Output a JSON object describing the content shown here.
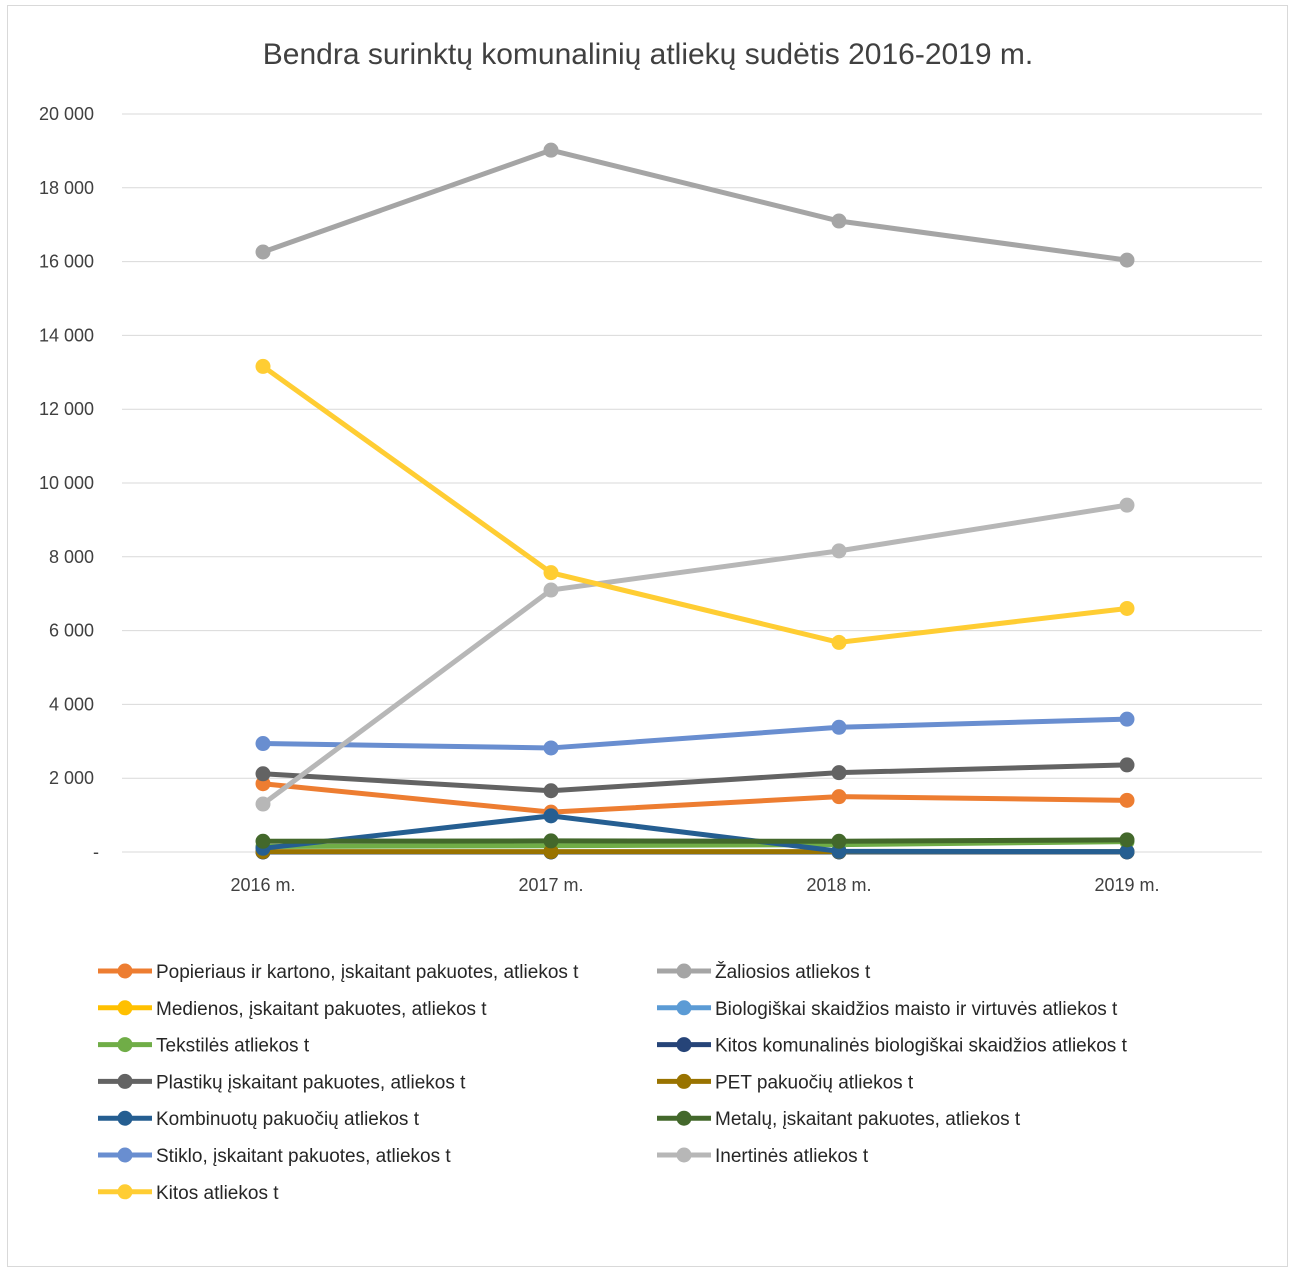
{
  "chart_data": {
    "type": "line",
    "title": "Bendra surinktų komunalinių atliekų sudėtis 2016-2019 m.",
    "xlabel": "",
    "ylabel": "",
    "categories": [
      "2016 m.",
      "2017 m.",
      "2018 m.",
      "2019 m."
    ],
    "ylim": [
      0,
      20000
    ],
    "y_ticks": [
      0,
      2000,
      4000,
      6000,
      8000,
      10000,
      12000,
      14000,
      16000,
      18000,
      20000
    ],
    "y_tick_labels": [
      "-",
      "2 000",
      "4 000",
      "6 000",
      "8 000",
      "10 000",
      "12 000",
      "14 000",
      "16 000",
      "18 000",
      "20 000"
    ],
    "grid": true,
    "legend_position": "bottom",
    "series": [
      {
        "name": "Popieriaus ir kartono, įskaitant pakuotes, atliekos t",
        "color": "#ED7D31",
        "values": [
          1850,
          1080,
          1500,
          1400
        ]
      },
      {
        "name": "Žaliosios atliekos t",
        "color": "#A5A5A5",
        "values": [
          16260,
          19020,
          17100,
          16040
        ]
      },
      {
        "name": "Medienos, įskaitant pakuotes, atliekos t",
        "color": "#FFC000",
        "values": [
          0,
          0,
          0,
          0
        ]
      },
      {
        "name": "Biologiškai skaidžios maisto ir virtuvės atliekos t",
        "color": "#5B9BD5",
        "values": [
          0,
          0,
          0,
          0
        ]
      },
      {
        "name": "Tekstilės atliekos t",
        "color": "#70AD47",
        "values": [
          150,
          170,
          200,
          280
        ]
      },
      {
        "name": "Kitos komunalinės biologiškai skaidžios atliekos t",
        "color": "#264478",
        "values": [
          0,
          0,
          0,
          0
        ]
      },
      {
        "name": "Plastikų įskaitant pakuotes, atliekos t",
        "color": "#636363",
        "values": [
          2120,
          1660,
          2150,
          2360
        ]
      },
      {
        "name": "PET pakuočių atliekos t",
        "color": "#997300",
        "values": [
          10,
          10,
          10,
          10
        ]
      },
      {
        "name": "Kombinuotų pakuočių atliekos t",
        "color": "#255E91",
        "values": [
          100,
          980,
          20,
          10
        ]
      },
      {
        "name": "Metalų, įskaitant pakuotes, atliekos t",
        "color": "#43682B",
        "values": [
          290,
          300,
          290,
          330
        ]
      },
      {
        "name": "Stiklo, įskaitant pakuotes, atliekos t",
        "color": "#698ED0",
        "values": [
          2940,
          2820,
          3380,
          3600
        ]
      },
      {
        "name": "Inertinės atliekos t",
        "color": "#B7B7B7",
        "values": [
          1300,
          7100,
          8160,
          9400
        ]
      },
      {
        "name": "Kitos atliekos t",
        "color": "#FFCD33",
        "values": [
          13160,
          7570,
          5680,
          6600
        ]
      }
    ]
  }
}
